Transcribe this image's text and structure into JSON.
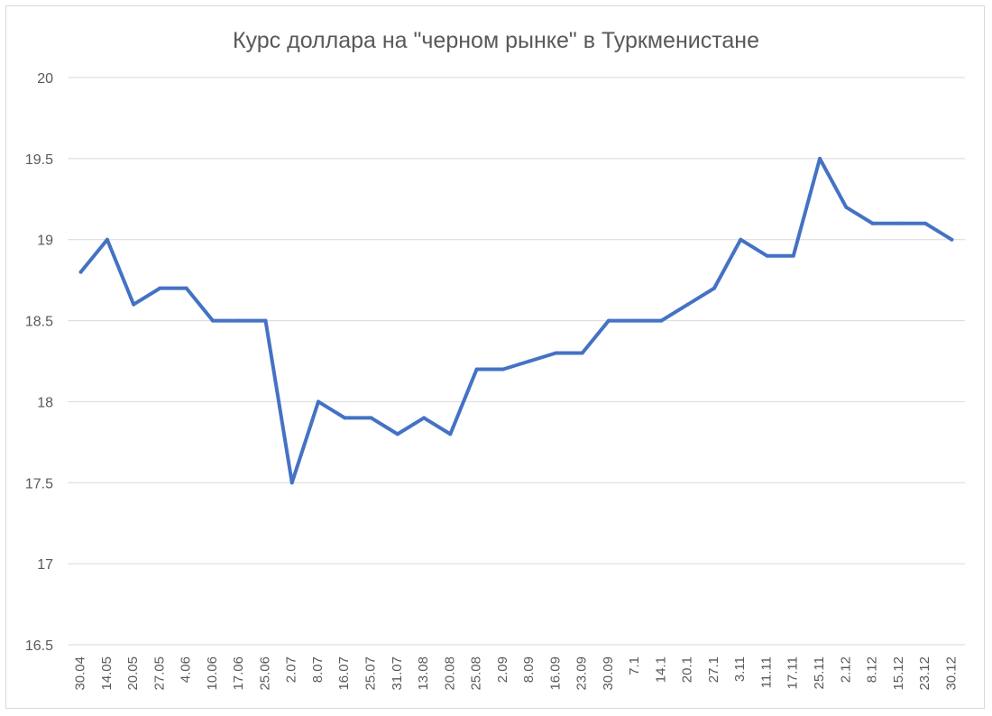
{
  "chart_data": {
    "type": "line",
    "title": "Курс доллара на \"черном рынке\" в Туркменистане",
    "xlabel": "",
    "ylabel": "",
    "ylim": [
      16.5,
      20
    ],
    "yticks": [
      "16.5",
      "17",
      "17.5",
      "18",
      "18.5",
      "19",
      "19.5",
      "20"
    ],
    "grid": true,
    "legend": "none",
    "categories": [
      "30.04",
      "14.05",
      "20.05",
      "27.05",
      "4.06",
      "10.06",
      "17.06",
      "25.06",
      "2.07",
      "8.07",
      "16.07",
      "25.07",
      "31.07",
      "13.08",
      "20.08",
      "25.08",
      "2.09",
      "8.09",
      "16.09",
      "23.09",
      "30.09",
      "7.1",
      "14.1",
      "20.1",
      "27.1",
      "3.11",
      "11.11",
      "17.11",
      "25.11",
      "2.12",
      "8.12",
      "15.12",
      "23.12",
      "30.12"
    ],
    "series": [
      {
        "values": [
          18.8,
          19.0,
          18.6,
          18.7,
          18.7,
          18.5,
          18.5,
          18.5,
          17.5,
          18.0,
          17.9,
          17.9,
          17.8,
          17.9,
          17.8,
          18.2,
          18.2,
          18.25,
          18.3,
          18.3,
          18.5,
          18.5,
          18.5,
          18.6,
          18.7,
          19.0,
          18.9,
          18.9,
          19.5,
          19.2,
          19.1,
          19.1,
          19.1,
          19.0
        ]
      }
    ],
    "colors": {
      "line": "#4472c4",
      "grid": "#d9d9d9",
      "text": "#595959"
    }
  }
}
